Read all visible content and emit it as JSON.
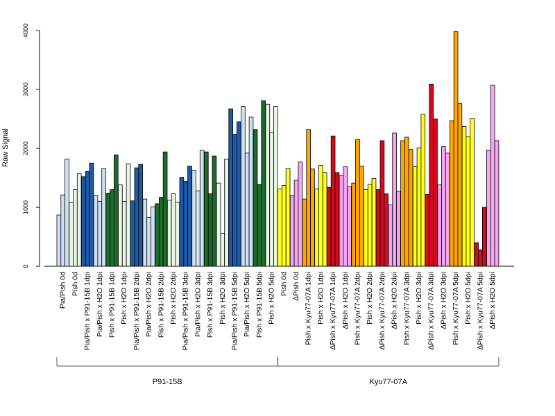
{
  "chart_data": {
    "type": "bar",
    "ylabel": "Raw Signal",
    "ylim": [
      0,
      4000
    ],
    "yticks": [
      0,
      1000,
      2000,
      3000,
      4000
    ],
    "grid": false,
    "legend": "none",
    "categories": [
      "Pia/Pish 0d",
      "Pish 0d",
      "Pia/Pish x P91-15B 1dpi",
      "Pia/Pish x H2O 1dpi",
      "Pish x P91-15B 1dpi",
      "Pish x H2O 1dpi",
      "Pia/Pish x P91-15B 2dpi",
      "Pia/Pish x H2O 2dpi",
      "Pish x P91-15B 2dpi",
      "Pish x H2O 2dpi",
      "Pia/Pish x P91-15B 3dpi",
      "Pia/Pish x H2O 3dpi",
      "Pish x P91-15B 3dpi",
      "Pish x H2O 3dpi",
      "Pia/Pish x P91-15B 5dpi",
      "Pia/Pish x H2O 5dpi",
      "Pish x P91-15B 5dpi",
      "Pish x H2O 5dpi",
      "Pish 0d",
      "ΔPish 0d",
      "Pish x Kyu77-07A 1dpi",
      "Pish x H2O 1dpi",
      "ΔPish x Kyu77-07A 1dpi",
      "ΔPish x H2O 1dpi",
      "Pish x Kyu77-07A 2dpi",
      "Pish x H2O 2dpi",
      "ΔPish x Kyu77-07A 2dpi",
      "ΔPish x H2O 2dpi",
      "Pish x Kyu77-07A 3dpi",
      "Pish x H2O 3dpi",
      "ΔPish x Kyu77-07A 3dpi",
      "ΔPish x H2O 3dpi",
      "Pish x Kyu77-07A 5dpi",
      "Pish x H2O 5dpi",
      "ΔPish x Kyu77-07A 5dpi",
      "ΔPish x H2O 5dpi"
    ],
    "colors": [
      "#cfe0f3",
      "#e9f5e3",
      "#1f5aa6",
      "#cfe0f3",
      "#1e6b2e",
      "#e9f5e3",
      "#1f5aa6",
      "#cfe0f3",
      "#1e6b2e",
      "#e9f5e3",
      "#1f5aa6",
      "#cfe0f3",
      "#1e6b2e",
      "#e9f5e3",
      "#1f5aa6",
      "#cfe0f3",
      "#1e6b2e",
      "#e9f5e3",
      "#ffff22",
      "#f4a6f0",
      "#ffa500",
      "#ffff22",
      "#d40a1e",
      "#f4a6f0",
      "#ffa500",
      "#ffff22",
      "#d40a1e",
      "#f4a6f0",
      "#ffa500",
      "#ffff22",
      "#d40a1e",
      "#f4a6f0",
      "#ffa500",
      "#ffff22",
      "#d40a1e",
      "#f4a6f0"
    ],
    "values": [
      [
        870,
        1210,
        1820
      ],
      [
        1080,
        1300,
        1570
      ],
      [
        1520,
        1610,
        1750
      ],
      [
        1200,
        1100,
        1660
      ],
      [
        1240,
        1300,
        1890
      ],
      [
        1380,
        1100,
        1740
      ],
      [
        1110,
        1670,
        1730
      ],
      [
        1140,
        830,
        1010
      ],
      [
        1060,
        1170,
        1940
      ],
      [
        1120,
        1230,
        1090
      ],
      [
        1510,
        1440,
        1700
      ],
      [
        1630,
        1280,
        1970
      ],
      [
        1940,
        1230,
        1870
      ],
      [
        1410,
        560,
        1820
      ],
      [
        2670,
        2240,
        2450
      ],
      [
        2710,
        1920,
        2530
      ],
      [
        2320,
        1390,
        2810
      ],
      [
        2750,
        2270,
        2710
      ],
      [
        1310,
        1370,
        1660
      ],
      [
        1200,
        1460,
        1770
      ],
      [
        1140,
        2320,
        1650
      ],
      [
        1310,
        1710,
        1590
      ],
      [
        1340,
        2210,
        1590
      ],
      [
        1540,
        1690,
        1350
      ],
      [
        1410,
        2150,
        1700
      ],
      [
        1300,
        1390,
        1490
      ],
      [
        1300,
        2130,
        1230
      ],
      [
        1040,
        2260,
        1270
      ],
      [
        2130,
        2190,
        1980
      ],
      [
        1690,
        2010,
        2580
      ],
      [
        1220,
        3090,
        2500
      ],
      [
        1380,
        2030,
        1920
      ],
      [
        2470,
        3980,
        2760
      ],
      [
        2370,
        2200,
        2510
      ],
      [
        400,
        280,
        1000
      ],
      [
        1970,
        3070,
        2130
      ]
    ],
    "groups": [
      {
        "label": "P91-15B",
        "start": 0,
        "end": 17
      },
      {
        "label": "Kyu77-07A",
        "start": 18,
        "end": 35
      }
    ]
  }
}
